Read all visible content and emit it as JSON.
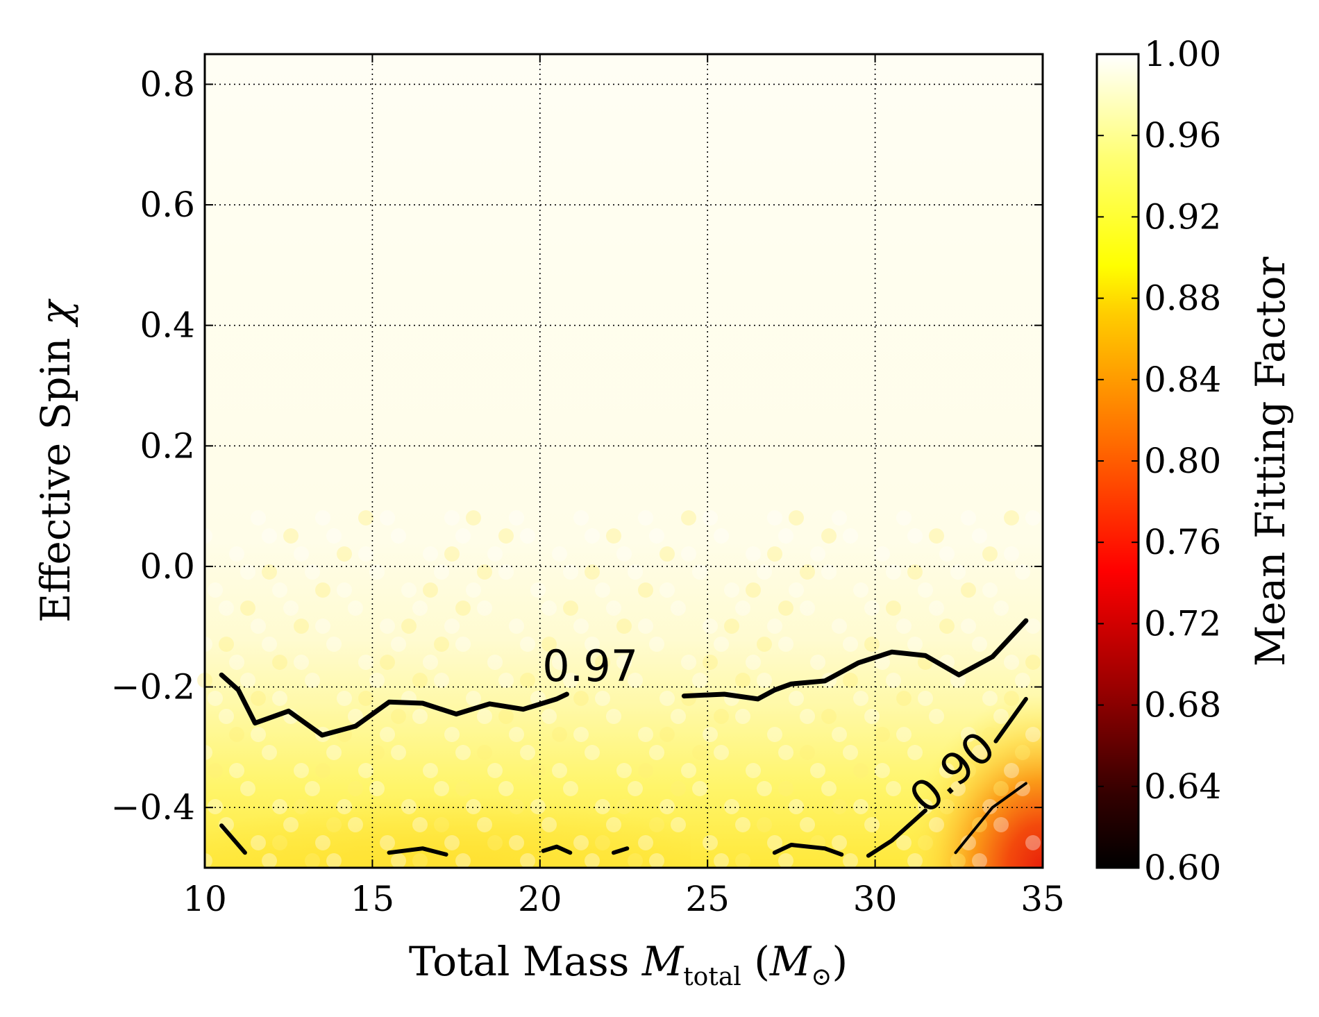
{
  "chart_data": {
    "type": "heatmap",
    "xlabel": {
      "main": "Total Mass ",
      "symbol": "M",
      "subscript": "total",
      "paren_open": " (",
      "unit_symbol": "M",
      "unit_subscript": "⊙",
      "paren_close": ")"
    },
    "ylabel": {
      "main": "Effective Spin ",
      "symbol": "χ"
    },
    "colorbar_label": "Mean Fitting Factor",
    "xlim": [
      10,
      35
    ],
    "ylim": [
      -0.5,
      0.85
    ],
    "xticks": [
      10,
      15,
      20,
      25,
      30,
      35
    ],
    "xtick_labels": [
      "10",
      "15",
      "20",
      "25",
      "30",
      "35"
    ],
    "yticks": [
      -0.4,
      -0.2,
      0.0,
      0.2,
      0.4,
      0.6,
      0.8
    ],
    "ytick_labels": [
      "−0.4",
      "−0.2",
      "0.0",
      "0.2",
      "0.4",
      "0.6",
      "0.8"
    ],
    "grid": true,
    "clim": [
      0.6,
      1.0
    ],
    "colorbar_ticks": [
      0.6,
      0.64,
      0.68,
      0.72,
      0.76,
      0.8,
      0.84,
      0.88,
      0.92,
      0.96,
      1.0
    ],
    "colorbar_tick_labels": [
      "0.60",
      "0.64",
      "0.68",
      "0.72",
      "0.76",
      "0.80",
      "0.84",
      "0.88",
      "0.92",
      "0.96",
      "1.00"
    ],
    "colormap": "hot",
    "contours": [
      {
        "level": 0.97,
        "label": "0.97",
        "label_at": [
          21.5,
          -0.19
        ],
        "segments": [
          [
            [
              10.5,
              -0.18
            ],
            [
              11,
              -0.205
            ],
            [
              11.5,
              -0.26
            ],
            [
              12.5,
              -0.24
            ],
            [
              13,
              -0.26
            ],
            [
              13.5,
              -0.28
            ],
            [
              14.5,
              -0.265
            ],
            [
              15.5,
              -0.225
            ],
            [
              16.5,
              -0.227
            ],
            [
              17.5,
              -0.245
            ],
            [
              18.5,
              -0.228
            ],
            [
              19.5,
              -0.237
            ],
            [
              20.5,
              -0.22
            ],
            [
              20.8,
              -0.212
            ]
          ],
          [
            [
              24.3,
              -0.215
            ],
            [
              25.5,
              -0.212
            ],
            [
              26.5,
              -0.22
            ],
            [
              27,
              -0.205
            ],
            [
              27.5,
              -0.195
            ],
            [
              28.5,
              -0.19
            ],
            [
              29.5,
              -0.16
            ],
            [
              30.5,
              -0.142
            ],
            [
              31.5,
              -0.148
            ],
            [
              32.5,
              -0.18
            ],
            [
              33.5,
              -0.15
            ],
            [
              34.5,
              -0.09
            ]
          ]
        ]
      },
      {
        "level": 0.9,
        "label": "0.90",
        "label_at": [
          32.6,
          -0.36
        ],
        "segments": [
          [
            [
              10.5,
              -0.43
            ],
            [
              11.2,
              -0.475
            ]
          ],
          [
            [
              15.5,
              -0.475
            ],
            [
              16.5,
              -0.468
            ],
            [
              17.2,
              -0.478
            ]
          ],
          [
            [
              20.1,
              -0.472
            ],
            [
              20.5,
              -0.465
            ],
            [
              20.9,
              -0.475
            ]
          ],
          [
            [
              22.2,
              -0.475
            ],
            [
              22.6,
              -0.468
            ]
          ],
          [
            [
              27,
              -0.475
            ],
            [
              27.5,
              -0.462
            ],
            [
              28.5,
              -0.468
            ],
            [
              29,
              -0.478
            ]
          ],
          [
            [
              29.8,
              -0.48
            ],
            [
              30.5,
              -0.455
            ],
            [
              31.5,
              -0.405
            ]
          ],
          [
            [
              33.6,
              -0.29
            ],
            [
              34.5,
              -0.22
            ]
          ]
        ]
      },
      {
        "level": 0.84,
        "segments": [
          [
            [
              32.4,
              -0.475
            ],
            [
              33.5,
              -0.4
            ],
            [
              34.5,
              -0.36
            ]
          ]
        ]
      }
    ]
  }
}
